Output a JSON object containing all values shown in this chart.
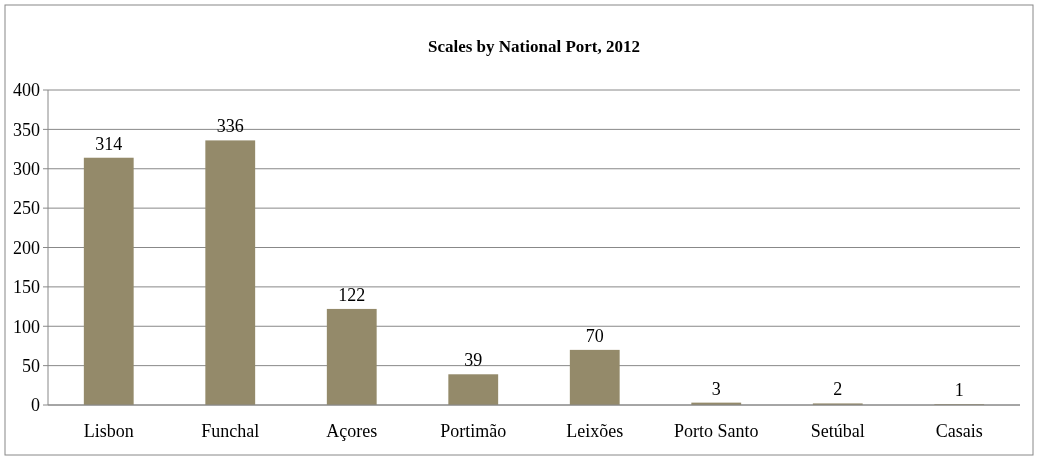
{
  "chart_data": {
    "type": "bar",
    "title": "Scales by National Port, 2012",
    "categories": [
      "Lisbon",
      "Funchal",
      "Açores",
      "Portimão",
      "Leixões",
      "Porto Santo",
      "Setúbal",
      "Casais"
    ],
    "values": [
      314,
      336,
      122,
      39,
      70,
      3,
      2,
      1
    ],
    "color": "#948a6a",
    "ylim": [
      0,
      400
    ],
    "yticks": [
      0,
      50,
      100,
      150,
      200,
      250,
      300,
      350,
      400
    ],
    "grid": "y",
    "data_labels": true
  }
}
